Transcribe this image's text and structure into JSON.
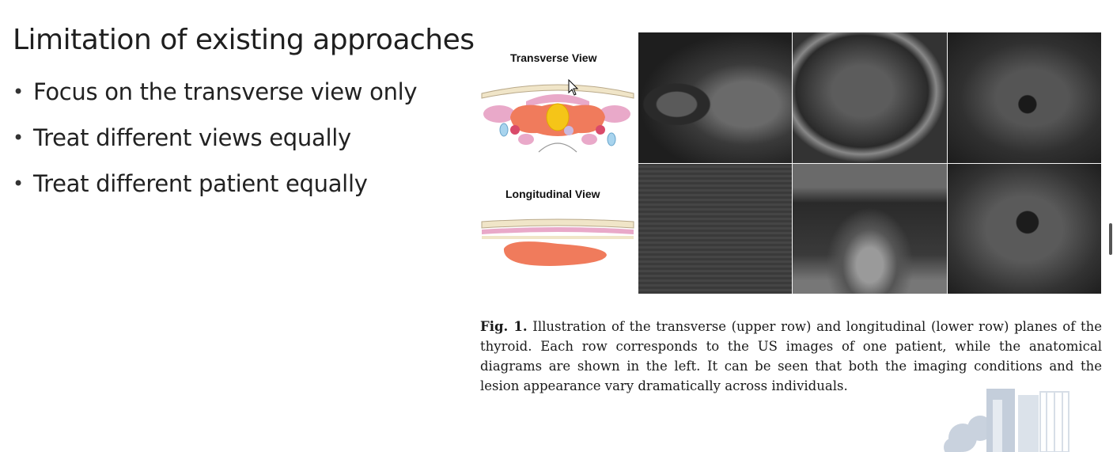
{
  "slide": {
    "title": "Limitation of existing approaches",
    "bullets": [
      "Focus on the transverse view only",
      "Treat different views equally",
      "Treat different patient equally"
    ],
    "bullet_glyph": "•"
  },
  "figure": {
    "transverse_label": "Transverse View",
    "longitudinal_label": "Longitudinal View",
    "caption_number": "Fig. 1.",
    "caption_text": "Illustration of the transverse (upper row) and longitudinal (lower row) planes of the thyroid. Each row corresponds to the US images of one patient, while the anatomical diagrams are shown in the left. It can be seen that both the imaging conditions and the lesion appearance vary dramatically across individuals.",
    "ultrasound_images": [
      {
        "row": "transverse",
        "name": "us-image-1"
      },
      {
        "row": "transverse",
        "name": "us-image-2"
      },
      {
        "row": "transverse",
        "name": "us-image-3"
      },
      {
        "row": "longitudinal",
        "name": "us-image-4"
      },
      {
        "row": "longitudinal",
        "name": "us-image-5"
      },
      {
        "row": "longitudinal",
        "name": "us-image-6"
      }
    ]
  },
  "colors": {
    "thyroid": "#f07b5c",
    "trachea": "#f5c518",
    "muscle": "#e9a9c9",
    "fascia": "#f0e5c8",
    "artery": "#d94a6a",
    "vein": "#a8d4ee",
    "esophagus": "#c9b9e0"
  },
  "icons": {
    "cursor": "mouse-pointer-icon"
  }
}
